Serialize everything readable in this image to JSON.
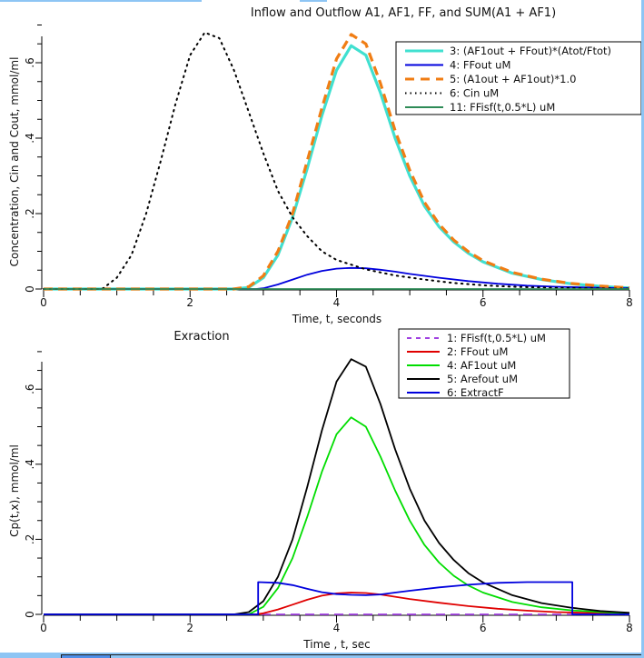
{
  "chart_data": [
    {
      "type": "line",
      "title": "Inflow and Outflow A1, AF1, FF, and SUM(A1 + AF1)",
      "xlabel": "Time, t, seconds",
      "ylabel": "Concentration, Cin and Cout, mmol/ml",
      "xlim": [
        0,
        8
      ],
      "ylim": [
        0,
        0.7
      ],
      "x_ticks": [
        "0",
        "2",
        "4",
        "6",
        "8"
      ],
      "y_ticks": [
        "0",
        ".2",
        ".4",
        ".6"
      ],
      "legend_position": "top-right",
      "series": [
        {
          "name": "3: (AF1out + FFout)*(Atot/Ftot)",
          "color": "#40e0d0",
          "style": "solid",
          "points": [
            [
              0,
              0
            ],
            [
              2.6,
              0
            ],
            [
              2.8,
              0.004
            ],
            [
              3.0,
              0.03
            ],
            [
              3.2,
              0.09
            ],
            [
              3.4,
              0.19
            ],
            [
              3.6,
              0.32
            ],
            [
              3.8,
              0.46
            ],
            [
              4.0,
              0.58
            ],
            [
              4.2,
              0.645
            ],
            [
              4.4,
              0.62
            ],
            [
              4.6,
              0.52
            ],
            [
              4.8,
              0.4
            ],
            [
              5.0,
              0.3
            ],
            [
              5.2,
              0.22
            ],
            [
              5.4,
              0.165
            ],
            [
              5.6,
              0.125
            ],
            [
              5.8,
              0.095
            ],
            [
              6.0,
              0.072
            ],
            [
              6.4,
              0.042
            ],
            [
              6.8,
              0.025
            ],
            [
              7.2,
              0.014
            ],
            [
              7.6,
              0.007
            ],
            [
              8.0,
              0.003
            ]
          ]
        },
        {
          "name": "4: FFout uM",
          "color": "#0000dd",
          "style": "solid",
          "points": [
            [
              0,
              0
            ],
            [
              2.9,
              0
            ],
            [
              3.0,
              0.002
            ],
            [
              3.2,
              0.012
            ],
            [
              3.4,
              0.025
            ],
            [
              3.6,
              0.038
            ],
            [
              3.8,
              0.048
            ],
            [
              4.0,
              0.054
            ],
            [
              4.2,
              0.056
            ],
            [
              4.4,
              0.055
            ],
            [
              4.6,
              0.051
            ],
            [
              4.8,
              0.046
            ],
            [
              5.0,
              0.04
            ],
            [
              5.4,
              0.03
            ],
            [
              5.8,
              0.021
            ],
            [
              6.2,
              0.014
            ],
            [
              6.6,
              0.009
            ],
            [
              7.0,
              0.006
            ],
            [
              7.4,
              0.004
            ],
            [
              8.0,
              0.002
            ]
          ]
        },
        {
          "name": "5: (A1out + AF1out)*1.0",
          "color": "#f07d14",
          "style": "dashed",
          "points": [
            [
              0,
              0
            ],
            [
              2.6,
              0
            ],
            [
              2.8,
              0.006
            ],
            [
              3.0,
              0.035
            ],
            [
              3.2,
              0.1
            ],
            [
              3.4,
              0.2
            ],
            [
              3.6,
              0.34
            ],
            [
              3.8,
              0.48
            ],
            [
              4.0,
              0.61
            ],
            [
              4.2,
              0.675
            ],
            [
              4.4,
              0.65
            ],
            [
              4.6,
              0.545
            ],
            [
              4.8,
              0.42
            ],
            [
              5.0,
              0.315
            ],
            [
              5.2,
              0.23
            ],
            [
              5.4,
              0.172
            ],
            [
              5.6,
              0.13
            ],
            [
              5.8,
              0.099
            ],
            [
              6.0,
              0.075
            ],
            [
              6.4,
              0.044
            ],
            [
              6.8,
              0.026
            ],
            [
              7.2,
              0.015
            ],
            [
              7.6,
              0.008
            ],
            [
              8.0,
              0.003
            ]
          ]
        },
        {
          "name": "6: Cin uM",
          "color": "#000000",
          "style": "dotted",
          "points": [
            [
              0,
              0
            ],
            [
              0.8,
              0
            ],
            [
              1.0,
              0.03
            ],
            [
              1.2,
              0.09
            ],
            [
              1.4,
              0.2
            ],
            [
              1.6,
              0.34
            ],
            [
              1.8,
              0.49
            ],
            [
              2.0,
              0.62
            ],
            [
              2.2,
              0.68
            ],
            [
              2.4,
              0.665
            ],
            [
              2.6,
              0.58
            ],
            [
              2.8,
              0.47
            ],
            [
              3.0,
              0.36
            ],
            [
              3.2,
              0.26
            ],
            [
              3.4,
              0.19
            ],
            [
              3.6,
              0.14
            ],
            [
              3.8,
              0.1
            ],
            [
              4.0,
              0.077
            ],
            [
              4.4,
              0.052
            ],
            [
              4.8,
              0.036
            ],
            [
              5.2,
              0.025
            ],
            [
              5.6,
              0.016
            ],
            [
              6.0,
              0.01
            ],
            [
              6.4,
              0.006
            ],
            [
              7.0,
              0.003
            ],
            [
              8.0,
              0.001
            ]
          ]
        },
        {
          "name": "11: FFisf(t,0.5*L) uM",
          "color": "#2e8b57",
          "style": "solid",
          "points": [
            [
              0,
              0
            ],
            [
              8,
              0
            ]
          ]
        }
      ]
    },
    {
      "type": "line",
      "title": "Exraction",
      "xlabel": "Time , t, sec",
      "ylabel": "Cp(t,x), mmol/ml",
      "xlim": [
        0,
        8
      ],
      "ylim": [
        0,
        0.7
      ],
      "x_ticks": [
        "0",
        "2",
        "4",
        "6",
        "8"
      ],
      "y_ticks": [
        "0",
        ".2",
        ".4",
        ".6"
      ],
      "legend_position": "top-right",
      "series": [
        {
          "name": "1: FFisf(t,0.5*L) uM",
          "color": "#a040e0",
          "style": "dashed",
          "points": [
            [
              0,
              0
            ],
            [
              8,
              0
            ]
          ]
        },
        {
          "name": "2: FFout uM",
          "color": "#e00000",
          "style": "solid",
          "points": [
            [
              0,
              0
            ],
            [
              2.9,
              0
            ],
            [
              3.0,
              0.003
            ],
            [
              3.2,
              0.013
            ],
            [
              3.4,
              0.026
            ],
            [
              3.6,
              0.039
            ],
            [
              3.8,
              0.05
            ],
            [
              4.0,
              0.056
            ],
            [
              4.2,
              0.058
            ],
            [
              4.4,
              0.057
            ],
            [
              4.6,
              0.053
            ],
            [
              4.8,
              0.047
            ],
            [
              5.0,
              0.041
            ],
            [
              5.4,
              0.031
            ],
            [
              5.8,
              0.022
            ],
            [
              6.2,
              0.015
            ],
            [
              6.6,
              0.01
            ],
            [
              7.0,
              0.006
            ],
            [
              7.4,
              0.004
            ],
            [
              8.0,
              0.002
            ]
          ]
        },
        {
          "name": "4: AF1out uM",
          "color": "#00dd00",
          "style": "solid",
          "points": [
            [
              0,
              0
            ],
            [
              2.8,
              0
            ],
            [
              3.0,
              0.02
            ],
            [
              3.2,
              0.07
            ],
            [
              3.4,
              0.15
            ],
            [
              3.6,
              0.26
            ],
            [
              3.8,
              0.38
            ],
            [
              4.0,
              0.48
            ],
            [
              4.2,
              0.525
            ],
            [
              4.4,
              0.5
            ],
            [
              4.6,
              0.42
            ],
            [
              4.8,
              0.33
            ],
            [
              5.0,
              0.25
            ],
            [
              5.2,
              0.185
            ],
            [
              5.4,
              0.138
            ],
            [
              5.6,
              0.103
            ],
            [
              5.8,
              0.077
            ],
            [
              6.0,
              0.058
            ],
            [
              6.4,
              0.033
            ],
            [
              6.8,
              0.019
            ],
            [
              7.2,
              0.011
            ],
            [
              7.6,
              0.006
            ],
            [
              8.0,
              0.003
            ]
          ]
        },
        {
          "name": "5: Arefout uM",
          "color": "#000000",
          "style": "solid",
          "points": [
            [
              0,
              0
            ],
            [
              2.6,
              0
            ],
            [
              2.8,
              0.006
            ],
            [
              3.0,
              0.035
            ],
            [
              3.2,
              0.1
            ],
            [
              3.4,
              0.2
            ],
            [
              3.6,
              0.34
            ],
            [
              3.8,
              0.49
            ],
            [
              4.0,
              0.62
            ],
            [
              4.2,
              0.68
            ],
            [
              4.4,
              0.66
            ],
            [
              4.6,
              0.56
            ],
            [
              4.8,
              0.44
            ],
            [
              5.0,
              0.335
            ],
            [
              5.2,
              0.25
            ],
            [
              5.4,
              0.19
            ],
            [
              5.6,
              0.145
            ],
            [
              5.8,
              0.11
            ],
            [
              6.0,
              0.085
            ],
            [
              6.4,
              0.051
            ],
            [
              6.8,
              0.03
            ],
            [
              7.2,
              0.018
            ],
            [
              7.6,
              0.009
            ],
            [
              8.0,
              0.004
            ]
          ]
        },
        {
          "name": "6: ExtractF",
          "color": "#0000dd",
          "style": "solid",
          "points": [
            [
              0,
              0
            ],
            [
              2.93,
              0
            ],
            [
              2.93,
              0.086
            ],
            [
              3.2,
              0.084
            ],
            [
              3.4,
              0.078
            ],
            [
              3.6,
              0.068
            ],
            [
              3.8,
              0.059
            ],
            [
              4.0,
              0.054
            ],
            [
              4.2,
              0.052
            ],
            [
              4.4,
              0.051
            ],
            [
              4.6,
              0.053
            ],
            [
              4.8,
              0.058
            ],
            [
              5.0,
              0.063
            ],
            [
              5.4,
              0.072
            ],
            [
              5.8,
              0.079
            ],
            [
              6.2,
              0.084
            ],
            [
              6.6,
              0.086
            ],
            [
              7.0,
              0.086
            ],
            [
              7.22,
              0.086
            ],
            [
              7.22,
              0
            ],
            [
              8.0,
              0
            ]
          ]
        }
      ]
    }
  ]
}
